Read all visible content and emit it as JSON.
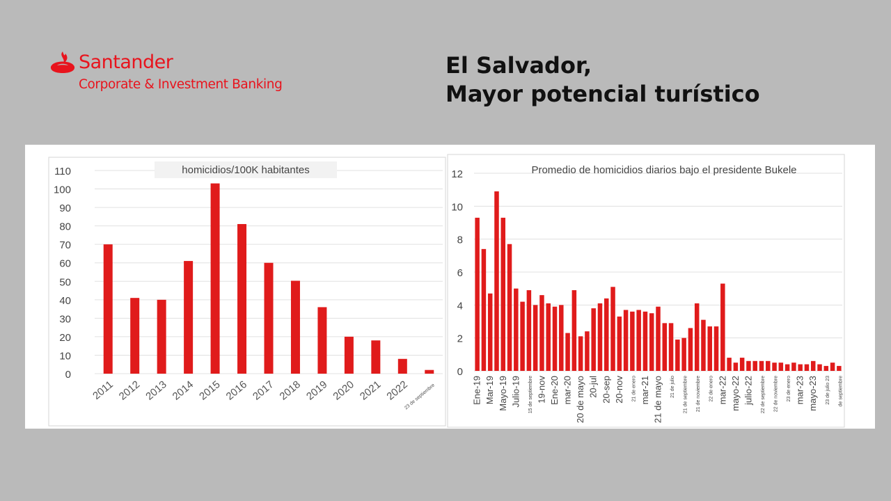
{
  "brand": {
    "name": "Santander",
    "subtitle": "Corporate & Investment Banking",
    "logo_icon": "santander-flame-icon",
    "color": "#e8141d"
  },
  "headline": {
    "line1": "El Salvador,",
    "line2": "Mayor potencial turístico"
  },
  "chart_data": [
    {
      "type": "bar",
      "title": "homicidios/100K habitantes",
      "xlabel": "",
      "ylabel": "",
      "ylim": [
        0,
        110
      ],
      "yticks": [
        0,
        10,
        20,
        30,
        40,
        50,
        60,
        70,
        80,
        90,
        100,
        110
      ],
      "grid": true,
      "bar_color": "#e01b1b",
      "categories": [
        "2011",
        "2012",
        "2013",
        "2014",
        "2015",
        "2016",
        "2017",
        "2018",
        "2019",
        "2020",
        "2021",
        "2022",
        "23 de septiembre"
      ],
      "values": [
        70,
        41,
        40,
        61,
        103,
        81,
        60,
        50.3,
        36,
        20,
        18,
        8,
        2
      ]
    },
    {
      "type": "bar",
      "title": "Promedio de homicidios diarios bajo el presidente Bukele",
      "xlabel": "",
      "ylabel": "",
      "ylim": [
        0,
        12
      ],
      "yticks": [
        0,
        2,
        4,
        6,
        8,
        10,
        12
      ],
      "grid": true,
      "bar_color": "#e01b1b",
      "tick_labels": [
        {
          "label": "Ene-19",
          "index": 0
        },
        {
          "label": "Mar-19",
          "index": 2
        },
        {
          "label": "Mayo-19",
          "index": 4
        },
        {
          "label": "Julio-19",
          "index": 6
        },
        {
          "label": "15 de septiembre",
          "index": 8
        },
        {
          "label": "19-nov",
          "index": 10
        },
        {
          "label": "Ene-20",
          "index": 12
        },
        {
          "label": "mar-20",
          "index": 14
        },
        {
          "label": "20 de mayo",
          "index": 16
        },
        {
          "label": "20-jul",
          "index": 18
        },
        {
          "label": "20-sep",
          "index": 20
        },
        {
          "label": "20-nov",
          "index": 22
        },
        {
          "label": "21 de enero",
          "index": 24
        },
        {
          "label": "mar-21",
          "index": 26
        },
        {
          "label": "21 de mayo",
          "index": 28
        },
        {
          "label": "21 de julio",
          "index": 30
        },
        {
          "label": "21 de septiembre",
          "index": 32
        },
        {
          "label": "21 de noviembre",
          "index": 34
        },
        {
          "label": "22 de enero",
          "index": 36
        },
        {
          "label": "mar-22",
          "index": 38
        },
        {
          "label": "mayo-22",
          "index": 40
        },
        {
          "label": "julio-22",
          "index": 42
        },
        {
          "label": "22 de septiembre",
          "index": 44
        },
        {
          "label": "22 de noviembre",
          "index": 46
        },
        {
          "label": "23 de enero",
          "index": 48
        },
        {
          "label": "mar-23",
          "index": 50
        },
        {
          "label": "mayo-23",
          "index": 52
        },
        {
          "label": "23 de julio 23",
          "index": 54
        },
        {
          "label": "de septiembre",
          "index": 56
        }
      ],
      "values": [
        9.3,
        7.4,
        4.7,
        10.9,
        9.3,
        7.7,
        5.0,
        4.2,
        4.9,
        4.0,
        4.6,
        4.1,
        3.9,
        4.0,
        2.3,
        4.9,
        2.1,
        2.4,
        3.8,
        4.1,
        4.4,
        5.1,
        3.3,
        3.7,
        3.6,
        3.7,
        3.6,
        3.5,
        3.9,
        2.9,
        2.9,
        1.9,
        2.0,
        2.6,
        4.1,
        3.1,
        2.7,
        2.7,
        5.3,
        0.8,
        0.5,
        0.8,
        0.6,
        0.6,
        0.6,
        0.6,
        0.5,
        0.5,
        0.4,
        0.5,
        0.4,
        0.4,
        0.6,
        0.4,
        0.3,
        0.5,
        0.3
      ]
    }
  ]
}
